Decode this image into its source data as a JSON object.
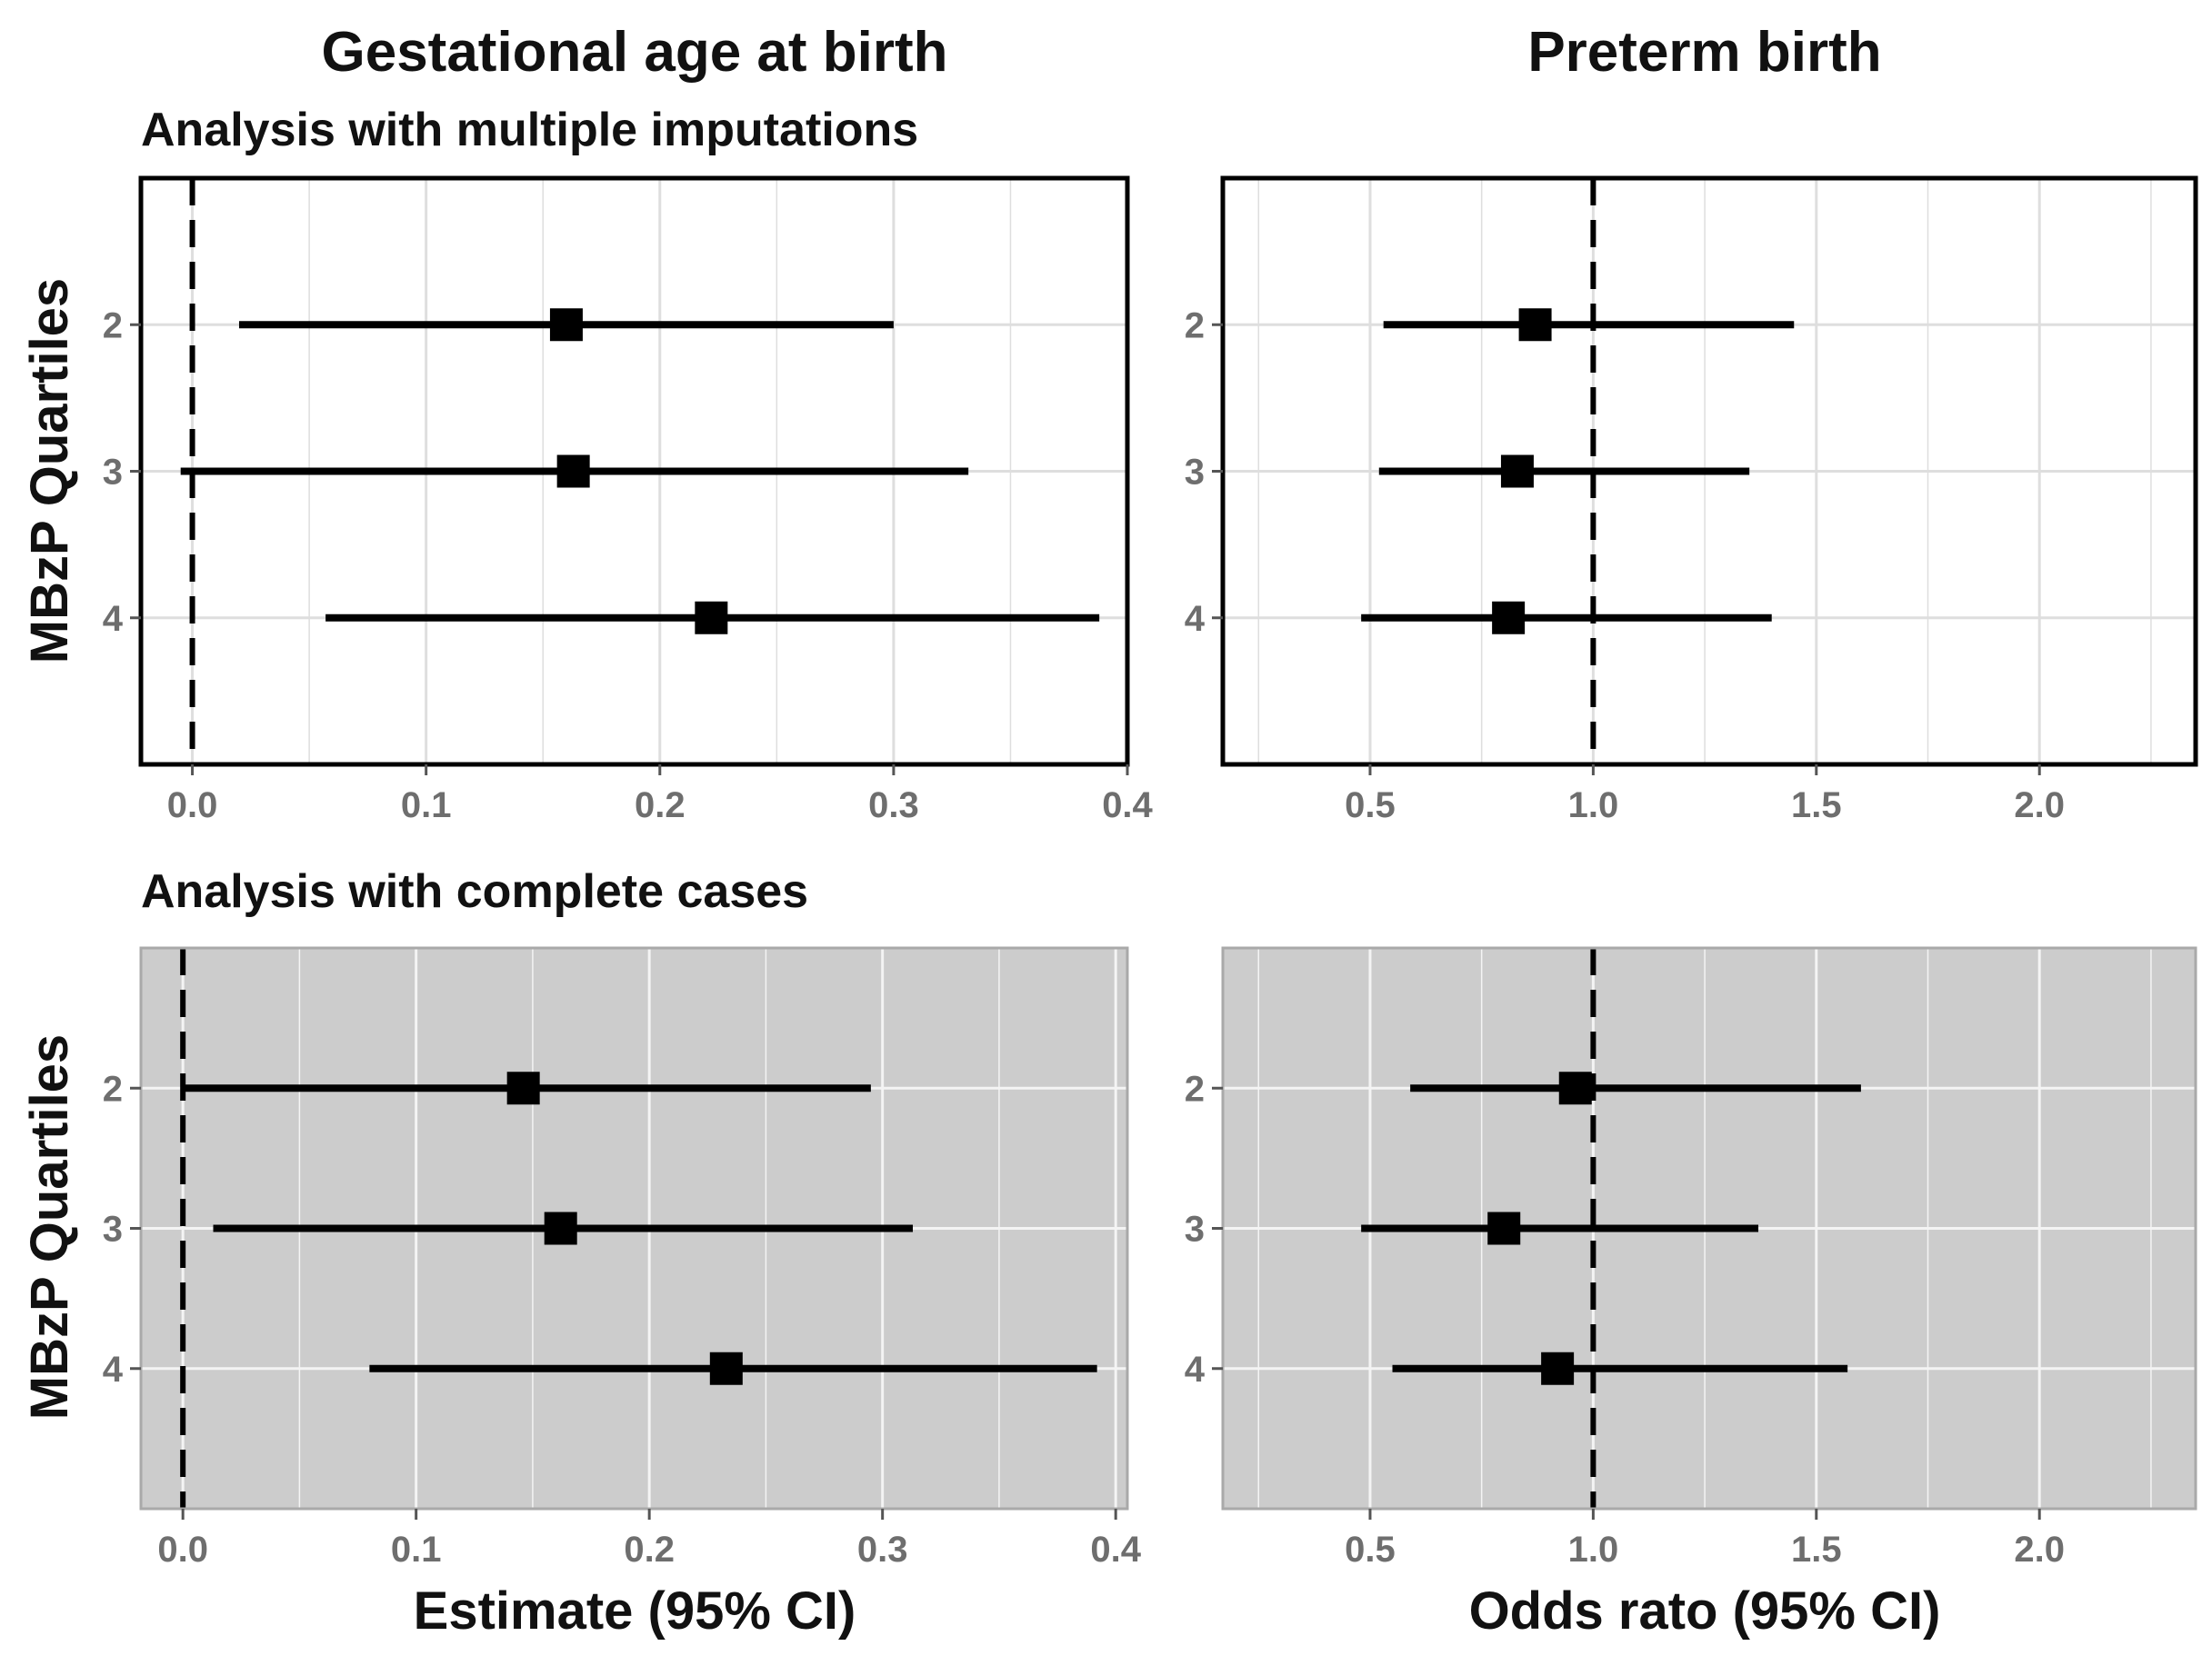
{
  "column_titles": [
    "Gestational age at birth",
    "Preterm birth"
  ],
  "row_titles": [
    "Analysis with multiple imputations",
    "Analysis with complete cases"
  ],
  "y_axis_label": "MBzP Quartiles",
  "x_axis_labels": [
    "Estimate (95% CI)",
    "Odds rato (95% CI)"
  ],
  "colors": {
    "text": "#111111",
    "tick_text": "#6e6e6e",
    "marks": "#000000",
    "panel_white_bg": "#ffffff",
    "panel_white_grid": "#dedede",
    "panel_gray_bg": "#cccccc",
    "panel_gray_grid": "#f4f4f4",
    "panel_gray_border": "#a9a9a9"
  },
  "chart_data": [
    {
      "type": "forest",
      "id": "mi-gestational-age",
      "row_title": "Analysis with multiple imputations",
      "column_title": "Gestational age at birth",
      "ylabel": "MBzP Quartiles",
      "xlabel": "",
      "style": "bw",
      "reference_line": 0.0,
      "xlim": [
        -0.022,
        0.4
      ],
      "xticks": [
        0.0,
        0.1,
        0.2,
        0.3,
        0.4
      ],
      "xtick_labels": [
        "0.0",
        "0.1",
        "0.2",
        "0.3",
        "0.4"
      ],
      "categories": [
        "2",
        "3",
        "4"
      ],
      "estimates": [
        0.16,
        0.163,
        0.222
      ],
      "ci_low": [
        0.02,
        -0.005,
        0.057
      ],
      "ci_high": [
        0.3,
        0.332,
        0.388
      ]
    },
    {
      "type": "forest",
      "id": "mi-preterm-birth",
      "row_title": "Analysis with multiple imputations",
      "column_title": "Preterm birth",
      "ylabel": "",
      "xlabel": "",
      "style": "bw",
      "reference_line": 1.0,
      "xlim": [
        0.17,
        2.35
      ],
      "xticks": [
        0.5,
        1.0,
        1.5,
        2.0
      ],
      "xtick_labels": [
        "0.5",
        "1.0",
        "1.5",
        "2.0"
      ],
      "categories": [
        "2",
        "3",
        "4"
      ],
      "estimates": [
        0.87,
        0.83,
        0.81
      ],
      "ci_low": [
        0.53,
        0.52,
        0.48
      ],
      "ci_high": [
        1.45,
        1.35,
        1.4
      ]
    },
    {
      "type": "forest",
      "id": "cc-gestational-age",
      "row_title": "Analysis with complete cases",
      "column_title": "Gestational age at birth",
      "ylabel": "MBzP Quartiles",
      "xlabel": "Estimate (95% CI)",
      "style": "gray",
      "reference_line": 0.0,
      "xlim": [
        -0.018,
        0.405
      ],
      "xticks": [
        0.0,
        0.1,
        0.2,
        0.3,
        0.4
      ],
      "xtick_labels": [
        "0.0",
        "0.1",
        "0.2",
        "0.3",
        "0.4"
      ],
      "categories": [
        "2",
        "3",
        "4"
      ],
      "estimates": [
        0.146,
        0.162,
        0.233
      ],
      "ci_low": [
        0.0,
        0.013,
        0.08
      ],
      "ci_high": [
        0.295,
        0.313,
        0.392
      ]
    },
    {
      "type": "forest",
      "id": "cc-preterm-birth",
      "row_title": "Analysis with complete cases",
      "column_title": "Preterm birth",
      "ylabel": "",
      "xlabel": "Odds rato (95% CI)",
      "style": "gray",
      "reference_line": 1.0,
      "xlim": [
        0.17,
        2.35
      ],
      "xticks": [
        0.5,
        1.0,
        1.5,
        2.0
      ],
      "xtick_labels": [
        "0.5",
        "1.0",
        "1.5",
        "2.0"
      ],
      "categories": [
        "2",
        "3",
        "4"
      ],
      "estimates": [
        0.96,
        0.8,
        0.92
      ],
      "ci_low": [
        0.59,
        0.48,
        0.55
      ],
      "ci_high": [
        1.6,
        1.37,
        1.57
      ]
    }
  ]
}
